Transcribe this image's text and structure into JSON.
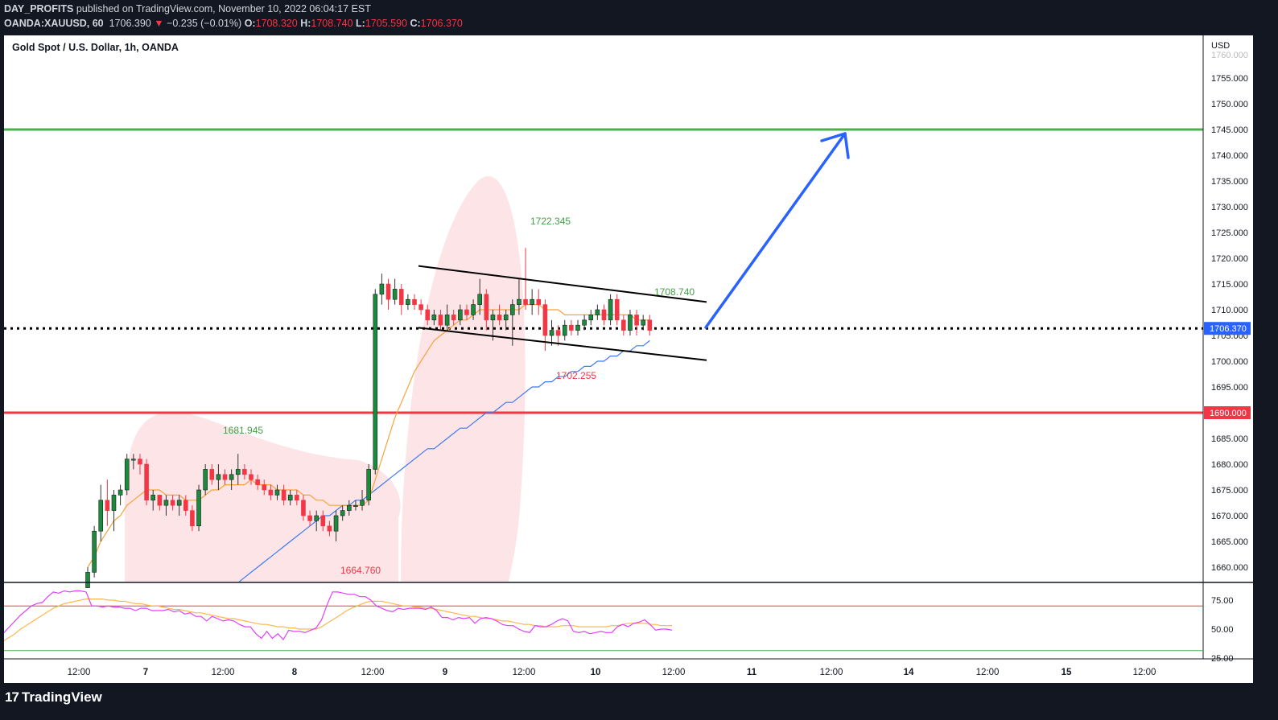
{
  "header": {
    "publisher": "DAY_PROFITS",
    "published_text": "published on TradingView.com, November 10, 2022 06:04:17 EST",
    "symbol": "OANDA:XAUUSD, 60",
    "last": "1706.390",
    "change": "−0.235 (−0.01%)",
    "o_label": "O:",
    "o": "1708.320",
    "h_label": "H:",
    "h": "1708.740",
    "l_label": "L:",
    "l": "1705.590",
    "c_label": "C:",
    "c": "1706.370"
  },
  "chart_title": "Gold Spot / U.S. Dollar, 1h, OANDA",
  "currency": "USD",
  "footer": {
    "brand": "TradingView"
  },
  "colors": {
    "up": "#089981",
    "up_body": "#26a69a",
    "candle_up": "#1b8a3c",
    "down": "#f23645",
    "resistance": "#4caf50",
    "support": "#f23645",
    "arrow": "#2962ff",
    "ma_fast": "#f7a23b",
    "ma_slow": "#3d7bf0",
    "rsi": "#e040fb",
    "rsi_ma": "#ffb74d"
  },
  "chart_data": {
    "type": "candlestick",
    "symbol": "XAUUSD",
    "interval": "1h",
    "ylim": [
      1658,
      1760
    ],
    "y_ticks": [
      1660,
      1665,
      1670,
      1675,
      1680,
      1685,
      1690,
      1695,
      1700,
      1705,
      1710,
      1715,
      1720,
      1725,
      1730,
      1735,
      1740,
      1745,
      1750,
      1755
    ],
    "y_tick_labels": [
      "1660.000",
      "1665.000",
      "1670.000",
      "1675.000",
      "1680.000",
      "1685.000",
      "1690.000",
      "1695.000",
      "1700.000",
      "1705.000",
      "1710.000",
      "1715.000",
      "1720.000",
      "1725.000",
      "1730.000",
      "1735.000",
      "1740.000",
      "1745.000",
      "1750.000",
      "1755.000"
    ],
    "x_tick_labels": [
      "12:00",
      "7",
      "12:00",
      "8",
      "12:00",
      "9",
      "12:00",
      "10",
      "12:00",
      "11",
      "12:00",
      "14",
      "12:00",
      "15",
      "12:00"
    ],
    "x_tick_bold": [
      false,
      true,
      false,
      true,
      false,
      true,
      false,
      true,
      false,
      true,
      false,
      true,
      false,
      true,
      false
    ],
    "candles_ohlc": [
      [
        1656,
        1660,
        1654,
        1659
      ],
      [
        1659,
        1668,
        1658,
        1667
      ],
      [
        1667,
        1676,
        1665,
        1673
      ],
      [
        1673,
        1677,
        1668,
        1671
      ],
      [
        1671,
        1675,
        1667,
        1674
      ],
      [
        1674,
        1676,
        1672,
        1675
      ],
      [
        1675,
        1682,
        1674,
        1681
      ],
      [
        1681,
        1682,
        1679,
        1681
      ],
      [
        1681,
        1682,
        1678,
        1680
      ],
      [
        1680,
        1681,
        1672,
        1673
      ],
      [
        1673,
        1675,
        1671,
        1674
      ],
      [
        1674,
        1674,
        1671,
        1672
      ],
      [
        1672,
        1674,
        1670,
        1673
      ],
      [
        1673,
        1674,
        1671,
        1672
      ],
      [
        1672,
        1674,
        1670,
        1673
      ],
      [
        1673,
        1674,
        1670,
        1671
      ],
      [
        1671,
        1672,
        1667,
        1668
      ],
      [
        1668,
        1676,
        1667,
        1675
      ],
      [
        1675,
        1680,
        1674,
        1679
      ],
      [
        1679,
        1680,
        1676,
        1677
      ],
      [
        1677,
        1680,
        1675,
        1678
      ],
      [
        1678,
        1679,
        1676,
        1677
      ],
      [
        1677,
        1679,
        1675,
        1678
      ],
      [
        1678,
        1682,
        1676,
        1679
      ],
      [
        1679,
        1680,
        1677,
        1678
      ],
      [
        1678,
        1679,
        1676,
        1677
      ],
      [
        1677,
        1678,
        1675,
        1676
      ],
      [
        1676,
        1677,
        1674,
        1675
      ],
      [
        1675,
        1676,
        1673,
        1674
      ],
      [
        1674,
        1676,
        1673,
        1675
      ],
      [
        1675,
        1676,
        1672,
        1673
      ],
      [
        1673,
        1675,
        1672,
        1674
      ],
      [
        1674,
        1675,
        1672,
        1673
      ],
      [
        1673,
        1674,
        1669,
        1670
      ],
      [
        1670,
        1671,
        1668,
        1669
      ],
      [
        1669,
        1671,
        1667,
        1670
      ],
      [
        1670,
        1671,
        1667,
        1668
      ],
      [
        1668,
        1669,
        1666,
        1667
      ],
      [
        1667,
        1671,
        1665,
        1670
      ],
      [
        1670,
        1672,
        1669,
        1671
      ],
      [
        1671,
        1673,
        1670,
        1672
      ],
      [
        1672,
        1673,
        1671,
        1672
      ],
      [
        1672,
        1675,
        1671,
        1673
      ],
      [
        1673,
        1680,
        1672,
        1679
      ],
      [
        1679,
        1714,
        1678,
        1713
      ],
      [
        1713,
        1717,
        1711,
        1715
      ],
      [
        1715,
        1716,
        1710,
        1712
      ],
      [
        1712,
        1716,
        1711,
        1714
      ],
      [
        1714,
        1715,
        1709,
        1711
      ],
      [
        1711,
        1713,
        1710,
        1712
      ],
      [
        1712,
        1713,
        1710,
        1711
      ],
      [
        1711,
        1712,
        1709,
        1710
      ],
      [
        1710,
        1711,
        1707,
        1708
      ],
      [
        1708,
        1710,
        1707,
        1709
      ],
      [
        1709,
        1710,
        1706,
        1707
      ],
      [
        1707,
        1711,
        1706,
        1709
      ],
      [
        1709,
        1710,
        1707,
        1708
      ],
      [
        1708,
        1711,
        1707,
        1710
      ],
      [
        1710,
        1711,
        1708,
        1709
      ],
      [
        1709,
        1712,
        1708,
        1711
      ],
      [
        1711,
        1716,
        1709,
        1713
      ],
      [
        1713,
        1714,
        1706,
        1708
      ],
      [
        1708,
        1710,
        1704,
        1709
      ],
      [
        1709,
        1711,
        1707,
        1708
      ],
      [
        1708,
        1710,
        1706,
        1709
      ],
      [
        1709,
        1712,
        1703,
        1711
      ],
      [
        1711,
        1716,
        1709,
        1712
      ],
      [
        1712,
        1722,
        1710,
        1711
      ],
      [
        1711,
        1714,
        1709,
        1712
      ],
      [
        1712,
        1714,
        1709,
        1711
      ],
      [
        1711,
        1712,
        1702,
        1705
      ],
      [
        1705,
        1708,
        1703,
        1706
      ],
      [
        1706,
        1707,
        1703,
        1705
      ],
      [
        1705,
        1708,
        1704,
        1707
      ],
      [
        1707,
        1708,
        1705,
        1706
      ],
      [
        1706,
        1708,
        1705,
        1707
      ],
      [
        1707,
        1709,
        1706,
        1708
      ],
      [
        1708,
        1710,
        1707,
        1709
      ],
      [
        1709,
        1711,
        1708,
        1710
      ],
      [
        1710,
        1711,
        1707,
        1708
      ],
      [
        1708,
        1713,
        1707,
        1712
      ],
      [
        1712,
        1713,
        1707,
        1708
      ],
      [
        1708,
        1709,
        1705,
        1706
      ],
      [
        1706,
        1710,
        1705,
        1709
      ],
      [
        1709,
        1710,
        1705,
        1707
      ],
      [
        1707,
        1709,
        1706,
        1708
      ],
      [
        1708,
        1709,
        1705,
        1706
      ]
    ],
    "ma_fast": [
      1660,
      1662,
      1665,
      1667,
      1669,
      1670,
      1672,
      1673,
      1674,
      1675,
      1675,
      1675,
      1674,
      1674,
      1674,
      1673,
      1673,
      1673,
      1674,
      1675,
      1675,
      1676,
      1676,
      1676,
      1676,
      1677,
      1676,
      1676,
      1676,
      1675,
      1675,
      1675,
      1675,
      1674,
      1674,
      1673,
      1673,
      1672,
      1672,
      1672,
      1672,
      1672,
      1672,
      1673,
      1677,
      1681,
      1685,
      1689,
      1692,
      1695,
      1698,
      1700,
      1702,
      1704,
      1705,
      1706,
      1707,
      1708,
      1708,
      1709,
      1710,
      1710,
      1710,
      1710,
      1710,
      1710,
      1710,
      1711,
      1711,
      1711,
      1710,
      1710,
      1710,
      1709,
      1709,
      1709,
      1709,
      1709,
      1709,
      1709,
      1709,
      1709,
      1709,
      1709,
      1708,
      1708,
      1708
    ],
    "ma_slow": [
      1630,
      1631,
      1632,
      1634,
      1635,
      1636,
      1638,
      1639,
      1640,
      1642,
      1643,
      1644,
      1645,
      1647,
      1648,
      1649,
      1650,
      1651,
      1652,
      1653,
      1654,
      1655,
      1656,
      1657,
      1658,
      1659,
      1660,
      1661,
      1662,
      1663,
      1664,
      1665,
      1666,
      1667,
      1668,
      1669,
      1670,
      1670,
      1671,
      1672,
      1672,
      1673,
      1673,
      1674,
      1675,
      1676,
      1677,
      1678,
      1679,
      1680,
      1681,
      1682,
      1683,
      1683,
      1684,
      1685,
      1686,
      1687,
      1687,
      1688,
      1689,
      1690,
      1690,
      1691,
      1692,
      1692,
      1693,
      1694,
      1695,
      1695,
      1696,
      1696,
      1697,
      1697,
      1698,
      1698,
      1699,
      1699,
      1700,
      1700,
      1701,
      1701,
      1702,
      1702,
      1703,
      1703,
      1704
    ],
    "levels": [
      {
        "name": "resistance",
        "price": 1745
      },
      {
        "name": "support",
        "price": 1690
      },
      {
        "name": "current",
        "price": 1706.37
      }
    ],
    "price_labels": [
      {
        "text": "1722.345",
        "price": 1722.345,
        "kind": "high"
      },
      {
        "text": "1708.740",
        "price": 1708.74,
        "kind": "high"
      },
      {
        "text": "1702.255",
        "price": 1702.255,
        "kind": "low"
      },
      {
        "text": "1681.945",
        "price": 1681.945,
        "kind": "high"
      },
      {
        "text": "1664.760",
        "price": 1664.76,
        "kind": "low"
      }
    ],
    "current_price_label": "1706.370",
    "support_price_label": "1690.000",
    "channel": {
      "upper": [
        1718.5,
        1711.5
      ],
      "lower": [
        1706.5,
        1700.2
      ]
    },
    "rsi": {
      "ylim": [
        25,
        85
      ],
      "y_tick_labels": [
        "75.00",
        "50.00",
        "25.00"
      ],
      "y_ticks": [
        75,
        50,
        25
      ],
      "overbought": 70,
      "oversold": 30,
      "values": [
        47,
        52,
        57,
        62,
        66,
        70,
        72,
        73,
        78,
        82,
        81,
        83,
        82,
        83,
        83,
        82,
        70,
        70,
        69,
        70,
        69,
        69,
        68,
        68,
        66,
        68,
        68,
        66,
        66,
        66,
        67,
        65,
        66,
        63,
        64,
        61,
        61,
        57,
        61,
        59,
        57,
        58,
        57,
        54,
        52,
        52,
        46,
        42,
        48,
        42,
        46,
        41,
        49,
        48,
        48,
        47,
        49,
        51,
        58,
        71,
        82,
        82,
        81,
        80,
        80,
        78,
        78,
        75,
        70,
        68,
        66,
        65,
        68,
        67,
        68,
        68,
        68,
        67,
        69,
        66,
        60,
        60,
        58,
        60,
        59,
        60,
        55,
        59,
        60,
        59,
        57,
        54,
        53,
        53,
        50,
        48,
        47,
        53,
        52,
        52,
        54,
        57,
        59,
        57,
        48,
        47,
        48,
        46,
        47,
        48,
        47,
        47,
        52,
        54,
        52,
        55,
        56,
        58,
        54,
        49,
        50,
        50,
        49
      ],
      "ma": [
        40,
        43,
        46,
        50,
        53,
        56,
        59,
        62,
        65,
        68,
        70,
        72,
        73,
        74,
        75,
        76,
        76,
        76,
        76,
        75,
        75,
        74,
        74,
        73,
        72,
        72,
        71,
        70,
        70,
        69,
        68,
        67,
        67,
        66,
        65,
        64,
        64,
        63,
        62,
        61,
        60,
        59,
        59,
        58,
        57,
        56,
        55,
        54,
        54,
        53,
        52,
        52,
        51,
        51,
        50,
        50,
        50,
        50,
        52,
        55,
        58,
        61,
        64,
        67,
        69,
        71,
        73,
        74,
        74,
        74,
        73,
        72,
        71,
        70,
        70,
        69,
        69,
        68,
        68,
        67,
        66,
        65,
        64,
        63,
        62,
        61,
        61,
        60,
        59,
        59,
        58,
        57,
        57,
        56,
        55,
        54,
        54,
        53,
        53,
        52,
        52,
        52,
        53,
        53,
        53,
        52,
        52,
        52,
        52,
        52,
        52,
        53,
        53,
        54,
        55,
        55,
        55,
        55,
        54,
        54,
        53,
        53,
        53
      ]
    }
  }
}
